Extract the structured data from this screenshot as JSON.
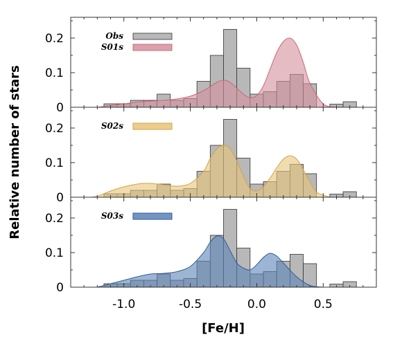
{
  "chart_data": {
    "type": "bar",
    "xlabel": "[Fe/H]",
    "ylabel": "Relative number of stars",
    "xlim": [
      -1.4,
      0.9
    ],
    "xticks": [
      -1.0,
      -0.5,
      0.0,
      0.5
    ],
    "xtick_labels": [
      "-1.0",
      "-0.5",
      "0.0",
      "0.5"
    ],
    "ylim": [
      0,
      0.26
    ],
    "yticks": [
      0,
      0.1,
      0.2
    ],
    "ytick_labels": [
      "0",
      "0.1",
      "0.2"
    ],
    "histogram": {
      "name": "Obs",
      "color": "#b8b8b8",
      "bin_width": 0.1,
      "bin_centers": [
        -1.1,
        -1.0,
        -0.9,
        -0.8,
        -0.7,
        -0.6,
        -0.5,
        -0.4,
        -0.3,
        -0.2,
        -0.1,
        0.0,
        0.1,
        0.2,
        0.3,
        0.4,
        0.5,
        0.6,
        0.7
      ],
      "values": [
        0.01,
        0.01,
        0.02,
        0.02,
        0.038,
        0.02,
        0.025,
        0.075,
        0.15,
        0.225,
        0.113,
        0.038,
        0.045,
        0.075,
        0.095,
        0.068,
        0.0,
        0.009,
        0.016
      ]
    },
    "panels": [
      {
        "model": "S01s",
        "color": "#cc6677",
        "fill": "#d4909c",
        "x": [
          -1.2,
          -1.1,
          -1.0,
          -0.9,
          -0.8,
          -0.7,
          -0.6,
          -0.5,
          -0.4,
          -0.3,
          -0.25,
          -0.2,
          -0.1,
          -0.05,
          0.0,
          0.05,
          0.1,
          0.15,
          0.2,
          0.25,
          0.3,
          0.35,
          0.4,
          0.5,
          0.6
        ],
        "y": [
          0.0,
          0.005,
          0.01,
          0.015,
          0.018,
          0.02,
          0.024,
          0.032,
          0.048,
          0.072,
          0.078,
          0.072,
          0.038,
          0.028,
          0.034,
          0.062,
          0.11,
          0.158,
          0.19,
          0.2,
          0.18,
          0.13,
          0.07,
          0.01,
          0.0
        ]
      },
      {
        "model": "S02s",
        "color": "#d4a240",
        "fill": "#e8c47a",
        "x": [
          -1.25,
          -1.2,
          -1.1,
          -1.0,
          -0.9,
          -0.85,
          -0.8,
          -0.7,
          -0.6,
          -0.5,
          -0.4,
          -0.35,
          -0.3,
          -0.25,
          -0.2,
          -0.15,
          -0.1,
          -0.05,
          0.0,
          0.05,
          0.1,
          0.15,
          0.2,
          0.25,
          0.3,
          0.35,
          0.4,
          0.45,
          0.55
        ],
        "y": [
          0.0,
          0.003,
          0.018,
          0.03,
          0.038,
          0.04,
          0.04,
          0.036,
          0.032,
          0.04,
          0.075,
          0.112,
          0.14,
          0.15,
          0.14,
          0.105,
          0.06,
          0.025,
          0.018,
          0.03,
          0.055,
          0.085,
          0.11,
          0.12,
          0.11,
          0.08,
          0.045,
          0.015,
          0.0
        ]
      },
      {
        "model": "S03s",
        "color": "#2f5a94",
        "fill": "#5b83b8",
        "x": [
          -1.2,
          -1.1,
          -1.0,
          -0.9,
          -0.8,
          -0.7,
          -0.6,
          -0.5,
          -0.4,
          -0.35,
          -0.3,
          -0.25,
          -0.2,
          -0.15,
          -0.1,
          -0.05,
          0.0,
          0.05,
          0.1,
          0.15,
          0.2,
          0.3,
          0.4,
          0.5
        ],
        "y": [
          0.0,
          0.01,
          0.02,
          0.03,
          0.038,
          0.04,
          0.045,
          0.06,
          0.1,
          0.13,
          0.148,
          0.14,
          0.105,
          0.07,
          0.055,
          0.05,
          0.065,
          0.086,
          0.098,
          0.09,
          0.07,
          0.03,
          0.005,
          0.0
        ]
      }
    ],
    "legend": {
      "position": "top-left",
      "labels": [
        "Obs",
        "S01s",
        "S02s",
        "S03s"
      ]
    }
  }
}
